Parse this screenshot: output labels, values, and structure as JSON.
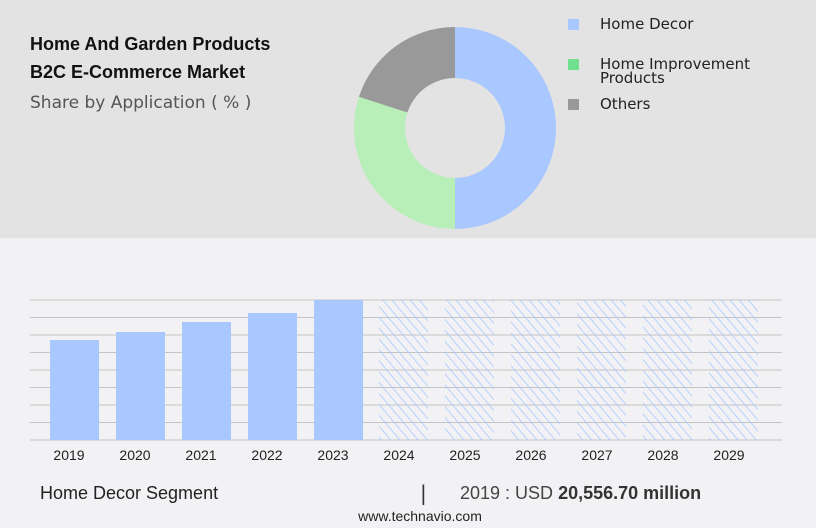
{
  "title_line1": "Home And Garden Products",
  "title_line2": "B2C E-Commerce Market",
  "subtitle": "Share by Application ( % )",
  "chart_data": [
    {
      "type": "pie",
      "donut": true,
      "labels": [
        "Home Decor",
        "Home Improvement Products",
        "Others"
      ],
      "legend_lines": [
        [
          "Home Decor"
        ],
        [
          "Home Improvement",
          "Products"
        ],
        [
          "Others"
        ]
      ],
      "values": [
        50,
        30,
        20
      ],
      "colors": [
        "#a8c8ff",
        "#b8eeb8",
        "#999999"
      ],
      "legend_colors": [
        "#a8c8ff",
        "#6ee08e",
        "#999999"
      ],
      "legend": "right"
    },
    {
      "type": "bar",
      "categories": [
        "2019",
        "2020",
        "2021",
        "2022",
        "2023",
        "2024",
        "2025",
        "2026",
        "2027",
        "2028",
        "2029"
      ],
      "values": [
        20556.7,
        22200,
        24260,
        26110,
        28780,
        null,
        null,
        null,
        null,
        null,
        null
      ],
      "forecast": [
        false,
        false,
        false,
        false,
        false,
        true,
        true,
        true,
        true,
        true,
        true
      ],
      "ylim": [
        0,
        28780
      ],
      "grid": true,
      "color": "#a8c8ff"
    }
  ],
  "footer": {
    "segment": "Home Decor Segment",
    "separator": "|",
    "value_prefix": "2019 : USD",
    "value": "20,556.70 million",
    "url": "www.technavio.com"
  }
}
